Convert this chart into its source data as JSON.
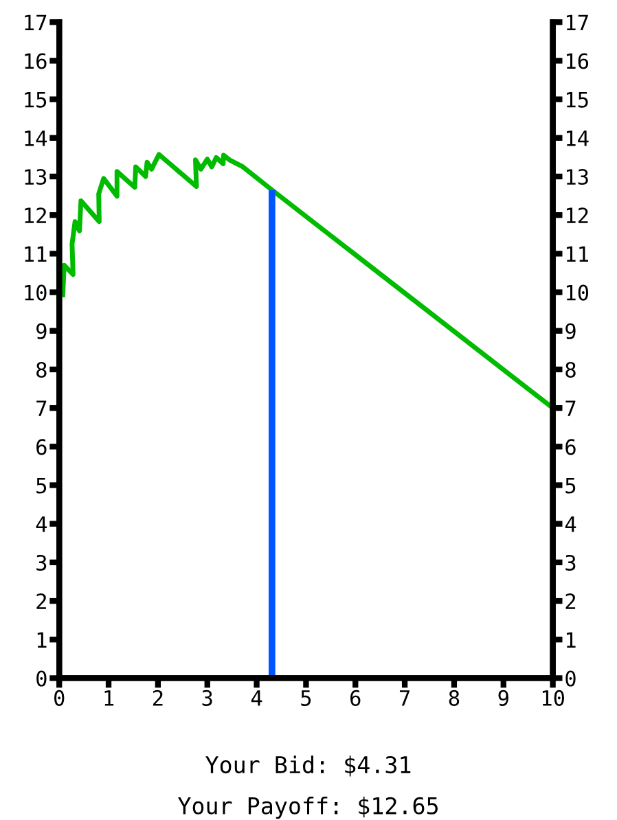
{
  "chart_data": {
    "type": "line",
    "series": [
      {
        "color": "#00bb00",
        "x": [
          0.07,
          0.1,
          0.28,
          0.26,
          0.32,
          0.41,
          0.44,
          0.81,
          0.8,
          0.9,
          1.17,
          1.17,
          1.53,
          1.55,
          1.75,
          1.78,
          1.87,
          2.02,
          2.78,
          2.76,
          2.87,
          3.0,
          3.09,
          3.18,
          3.32,
          3.33,
          3.45,
          3.72,
          4.31,
          10
        ],
        "values": [
          9.87,
          10.7,
          10.46,
          11.25,
          11.83,
          11.59,
          12.37,
          11.83,
          12.55,
          12.95,
          12.49,
          13.13,
          12.72,
          13.25,
          13.0,
          13.37,
          13.19,
          13.57,
          12.74,
          13.43,
          13.19,
          13.45,
          13.25,
          13.49,
          13.33,
          13.55,
          13.43,
          13.25,
          12.65,
          7.0
        ]
      },
      {
        "color": "#0055ff",
        "x": [
          4.31,
          4.31
        ],
        "values": [
          0,
          12.65
        ]
      }
    ],
    "xlim": [
      0,
      10
    ],
    "xticks": [
      0,
      1,
      2,
      3,
      4,
      5,
      6,
      7,
      8,
      9,
      10
    ],
    "ylim": [
      0,
      17
    ],
    "yticks": [
      0,
      1,
      2,
      3,
      4,
      5,
      6,
      7,
      8,
      9,
      10,
      11,
      12,
      13,
      14,
      15,
      16,
      17
    ],
    "y2lim": [
      0,
      17
    ],
    "y2ticks": [
      0,
      1,
      2,
      3,
      4,
      5,
      6,
      7,
      8,
      9,
      10,
      11,
      12,
      13,
      14,
      15,
      16,
      17
    ],
    "grid": false,
    "legend": false,
    "marker": "none",
    "line_style": "solid",
    "annotations": [
      "Your Bid: $4.31",
      "Your Payoff: $12.65"
    ]
  }
}
